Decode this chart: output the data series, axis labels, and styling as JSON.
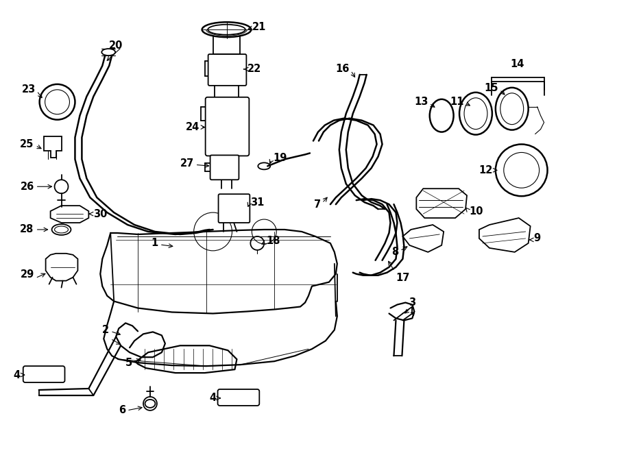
{
  "bg_color": "#ffffff",
  "line_color": "#000000",
  "figsize": [
    9.0,
    6.61
  ],
  "dpi": 100,
  "lw": 1.3,
  "lw_thin": 0.8,
  "fs": 10.5
}
